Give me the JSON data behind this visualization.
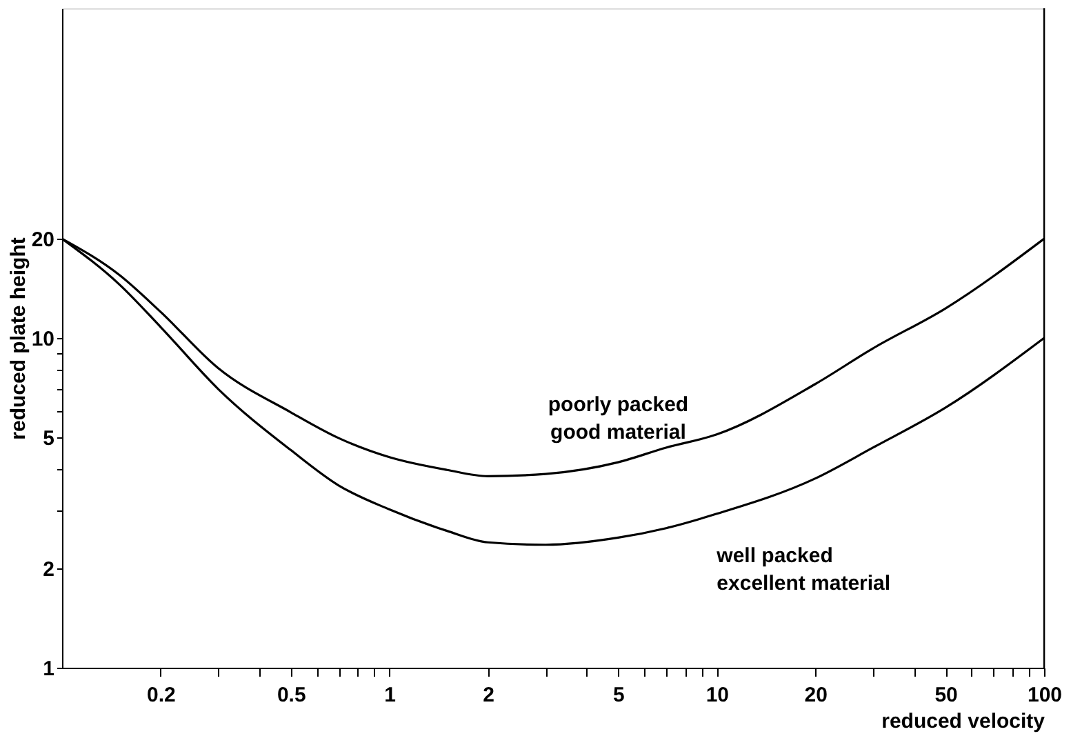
{
  "chart_data": {
    "type": "line",
    "xlabel": "reduced velocity",
    "ylabel": "reduced plate height",
    "log": "xy",
    "xlim": [
      0.1,
      100
    ],
    "ylim": [
      1,
      100
    ],
    "xticks": [
      0.2,
      {
        "value": 0.3,
        "label": null
      },
      {
        "value": 0.4,
        "label": null
      },
      0.5,
      {
        "value": 0.6,
        "label": null
      },
      {
        "value": 0.7,
        "label": null
      },
      {
        "value": 0.8,
        "label": null
      },
      {
        "value": 0.9,
        "label": null
      },
      1,
      2,
      {
        "value": 3,
        "label": null
      },
      {
        "value": 4,
        "label": null
      },
      5,
      {
        "value": 6,
        "label": null
      },
      {
        "value": 7,
        "label": null
      },
      {
        "value": 8,
        "label": null
      },
      {
        "value": 9,
        "label": null
      },
      10,
      20,
      {
        "value": 30,
        "label": null
      },
      {
        "value": 40,
        "label": null
      },
      50,
      {
        "value": 60,
        "label": null
      },
      {
        "value": 70,
        "label": null
      },
      {
        "value": 80,
        "label": null
      },
      {
        "value": 90,
        "label": null
      },
      100
    ],
    "yticks": [
      1,
      2,
      {
        "value": 3,
        "label": null
      },
      {
        "value": 4,
        "label": null
      },
      5,
      {
        "value": 6,
        "label": null
      },
      {
        "value": 7,
        "label": null
      },
      {
        "value": 8,
        "label": null
      },
      {
        "value": 9,
        "label": null
      },
      10,
      20
    ],
    "x": [
      0.1,
      0.15,
      0.2,
      0.3,
      0.5,
      0.7,
      1,
      1.5,
      2,
      3,
      5,
      7,
      10,
      20,
      30,
      50,
      100
    ],
    "grid": false,
    "marker": "none",
    "line_style": "solid",
    "series": [
      {
        "name": "poorly packed\ngood material",
        "color": "#000000",
        "values": [
          20,
          15.5,
          12,
          8.1,
          5.95,
          4.97,
          4.35,
          3.98,
          3.81,
          3.87,
          4.2,
          4.65,
          5.1,
          7.25,
          9.3,
          12.3,
          20
        ]
      },
      {
        "name": "well packed\nexcellent material",
        "color": "#000000",
        "values": [
          20,
          14.5,
          10.8,
          7.0,
          4.57,
          3.57,
          3.02,
          2.6,
          2.4,
          2.36,
          2.48,
          2.65,
          2.93,
          3.75,
          4.65,
          6.15,
          10
        ]
      }
    ]
  }
}
